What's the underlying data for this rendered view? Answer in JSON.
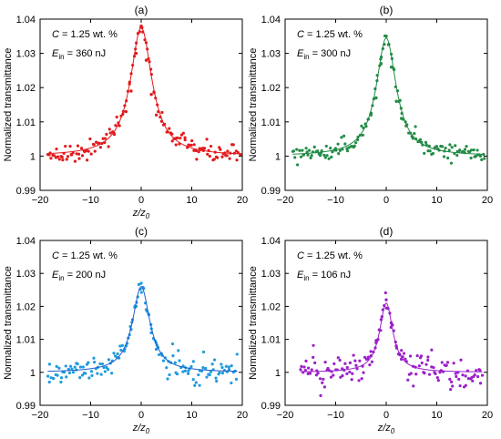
{
  "chart_data": [
    {
      "type": "scatter",
      "panel_label": "(a)",
      "title": "",
      "xlabel": "z/z₀",
      "ylabel": "Normalized transmittance",
      "xlim": [
        -20,
        20
      ],
      "ylim": [
        0.99,
        1.04
      ],
      "xticks": [
        -20,
        -10,
        0,
        10,
        20
      ],
      "yticks": [
        0.99,
        1,
        1.01,
        1.02,
        1.03,
        1.04
      ],
      "ytick_labels": [
        "0.99",
        "1",
        "1.01",
        "1.02",
        "1.03",
        "1.04"
      ],
      "annotation": {
        "c_label": "C",
        "c_text": " = 1.25 wt. %",
        "e_label": "E",
        "e_sub": "in",
        "e_text": " = 360 nJ"
      },
      "color": "#e31a1c",
      "fit": {
        "x_range": [
          -18.5,
          19.5
        ],
        "peak": 1.0375,
        "baseline": 1.0,
        "width": 2.6
      },
      "points": {
        "x_range": [
          -18.5,
          19.5
        ],
        "count": 150,
        "noise": 0.0013
      },
      "series": [
        {
          "x": [
            -3,
            -2,
            -1,
            0,
            1,
            2,
            3
          ],
          "y": [
            1.013,
            1.019,
            1.03,
            1.038,
            1.028,
            1.018,
            1.012
          ]
        }
      ]
    },
    {
      "type": "scatter",
      "panel_label": "(b)",
      "title": "",
      "xlabel": "",
      "ylabel": "Normalized transmittance",
      "xlim": [
        -20,
        20
      ],
      "ylim": [
        0.99,
        1.04
      ],
      "xticks": [
        -20,
        -10,
        0,
        10,
        20
      ],
      "yticks": [
        0.99,
        1,
        1.01,
        1.02,
        1.03,
        1.04
      ],
      "ytick_labels": [
        "0.99",
        "1",
        "1.01",
        "1.02",
        "1.03",
        "1.04"
      ],
      "annotation": {
        "c_label": "C",
        "c_text": " = 1.25 wt. %",
        "e_label": "E",
        "e_sub": "in",
        "e_text": " = 300 nJ"
      },
      "color": "#238b45",
      "fit": {
        "x_range": [
          -18.5,
          19.5
        ],
        "peak": 1.0345,
        "baseline": 1.0,
        "width": 2.4
      },
      "points": {
        "x_range": [
          -18.5,
          19.5
        ],
        "count": 150,
        "noise": 0.0012
      },
      "series": [
        {
          "x": [
            -3,
            -2,
            -1,
            0,
            1,
            2,
            3
          ],
          "y": [
            1.012,
            1.017,
            1.027,
            1.035,
            1.026,
            1.016,
            1.011
          ]
        }
      ]
    },
    {
      "type": "scatter",
      "panel_label": "(c)",
      "title": "",
      "xlabel": "z/z₀",
      "ylabel": "Normalized transmittance",
      "xlim": [
        -20,
        20
      ],
      "ylim": [
        0.99,
        1.04
      ],
      "xticks": [
        -20,
        -10,
        0,
        10,
        20
      ],
      "yticks": [
        0.99,
        1,
        1.01,
        1.02,
        1.03,
        1.04
      ],
      "ytick_labels": [
        "0.99",
        "1",
        "1.01",
        "1.02",
        "1.03",
        "1.04"
      ],
      "annotation": {
        "c_label": "C",
        "c_text": " = 1.25 wt. %",
        "e_label": "E",
        "e_sub": "in",
        "e_text": " = 200 nJ"
      },
      "color": "#1f9bde",
      "line_color": "#1f5fd1",
      "fit": {
        "x_range": [
          -18.5,
          19
        ],
        "peak": 1.026,
        "baseline": 1.0,
        "width": 2.1
      },
      "points": {
        "x_range": [
          -18.5,
          19
        ],
        "count": 150,
        "noise": 0.0022
      },
      "series": [
        {
          "x": [
            -3,
            -2,
            -1,
            0,
            1,
            2,
            3
          ],
          "y": [
            1.008,
            1.013,
            1.02,
            1.027,
            1.019,
            1.012,
            1.007
          ]
        }
      ]
    },
    {
      "type": "scatter",
      "panel_label": "(d)",
      "title": "",
      "xlabel": "z/z₀",
      "ylabel": "Normalized transmittance",
      "xlim": [
        -20,
        20
      ],
      "ylim": [
        0.99,
        1.04
      ],
      "xticks": [
        -20,
        -10,
        0,
        10,
        20
      ],
      "yticks": [
        0.99,
        1,
        1.01,
        1.02,
        1.03,
        1.04
      ],
      "ytick_labels": [
        "0.99",
        "1",
        "1.01",
        "1.02",
        "1.03",
        "1.04"
      ],
      "annotation": {
        "c_label": "C",
        "c_text": " = 1.25 wt. %",
        "e_label": "E",
        "e_sub": "in",
        "e_text": " = 106 nJ"
      },
      "color": "#9b1fc9",
      "fit": {
        "x_range": [
          -17,
          19
        ],
        "peak": 1.021,
        "baseline": 1.0,
        "width": 1.6
      },
      "points": {
        "x_range": [
          -17,
          19
        ],
        "count": 150,
        "noise": 0.0027
      },
      "series": [
        {
          "x": [
            -3,
            -2,
            -1,
            0,
            1,
            2,
            3
          ],
          "y": [
            1.005,
            1.009,
            1.016,
            1.022,
            1.015,
            1.008,
            1.004
          ]
        }
      ]
    }
  ]
}
